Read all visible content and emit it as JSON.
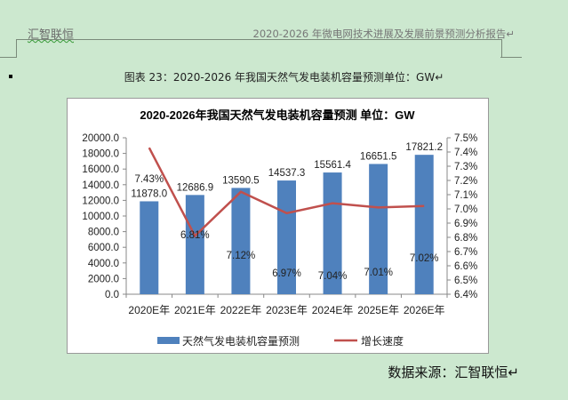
{
  "header": {
    "left": "汇智联恒",
    "right": "2020-2026 年微电网技术进展及发展前景预测分析报告↵"
  },
  "caption": "图表 23：2020-2026 年我国天然气发电装机容量预测单位：GW↵",
  "source": "数据来源：汇智联恒↵",
  "colors": {
    "bar": "#4f81bd",
    "line": "#c0504d",
    "background": "#cce8cf"
  },
  "chart_data": {
    "type": "bar+line",
    "title": "2020-2026年我国天然气发电装机容量预测 单位：GW",
    "categories": [
      "2020E年",
      "2021E年",
      "2022E年",
      "2023E年",
      "2024E年",
      "2025E年",
      "2026E年"
    ],
    "series": [
      {
        "name": "天然气发电装机容量预测",
        "type": "bar",
        "axis": "left",
        "values": [
          11878.0,
          12686.9,
          13590.5,
          14537.3,
          15561.4,
          16651.5,
          17821.2
        ],
        "labels": [
          "11878.0",
          "12686.9",
          "13590.5",
          "14537.3",
          "15561.4",
          "16651.5",
          "17821.2"
        ]
      },
      {
        "name": "增长速度",
        "type": "line",
        "axis": "right",
        "values": [
          7.43,
          6.81,
          7.12,
          6.97,
          7.04,
          7.01,
          7.02
        ],
        "labels": [
          "7.43%",
          "6.81%",
          "7.12%",
          "6.97%",
          "7.04%",
          "7.01%",
          "7.02%"
        ]
      }
    ],
    "y_left": {
      "range": [
        0,
        20000
      ],
      "ticks": [
        "0.0",
        "2000.0",
        "4000.0",
        "6000.0",
        "8000.0",
        "10000.0",
        "12000.0",
        "14000.0",
        "16000.0",
        "18000.0",
        "20000.0"
      ]
    },
    "y_right": {
      "range": [
        6.4,
        7.5
      ],
      "ticks": [
        "6.4%",
        "6.5%",
        "6.6%",
        "6.7%",
        "6.8%",
        "6.9%",
        "7.0%",
        "7.1%",
        "7.2%",
        "7.3%",
        "7.4%",
        "7.5%"
      ]
    },
    "legend": "bottom",
    "grid": false
  }
}
